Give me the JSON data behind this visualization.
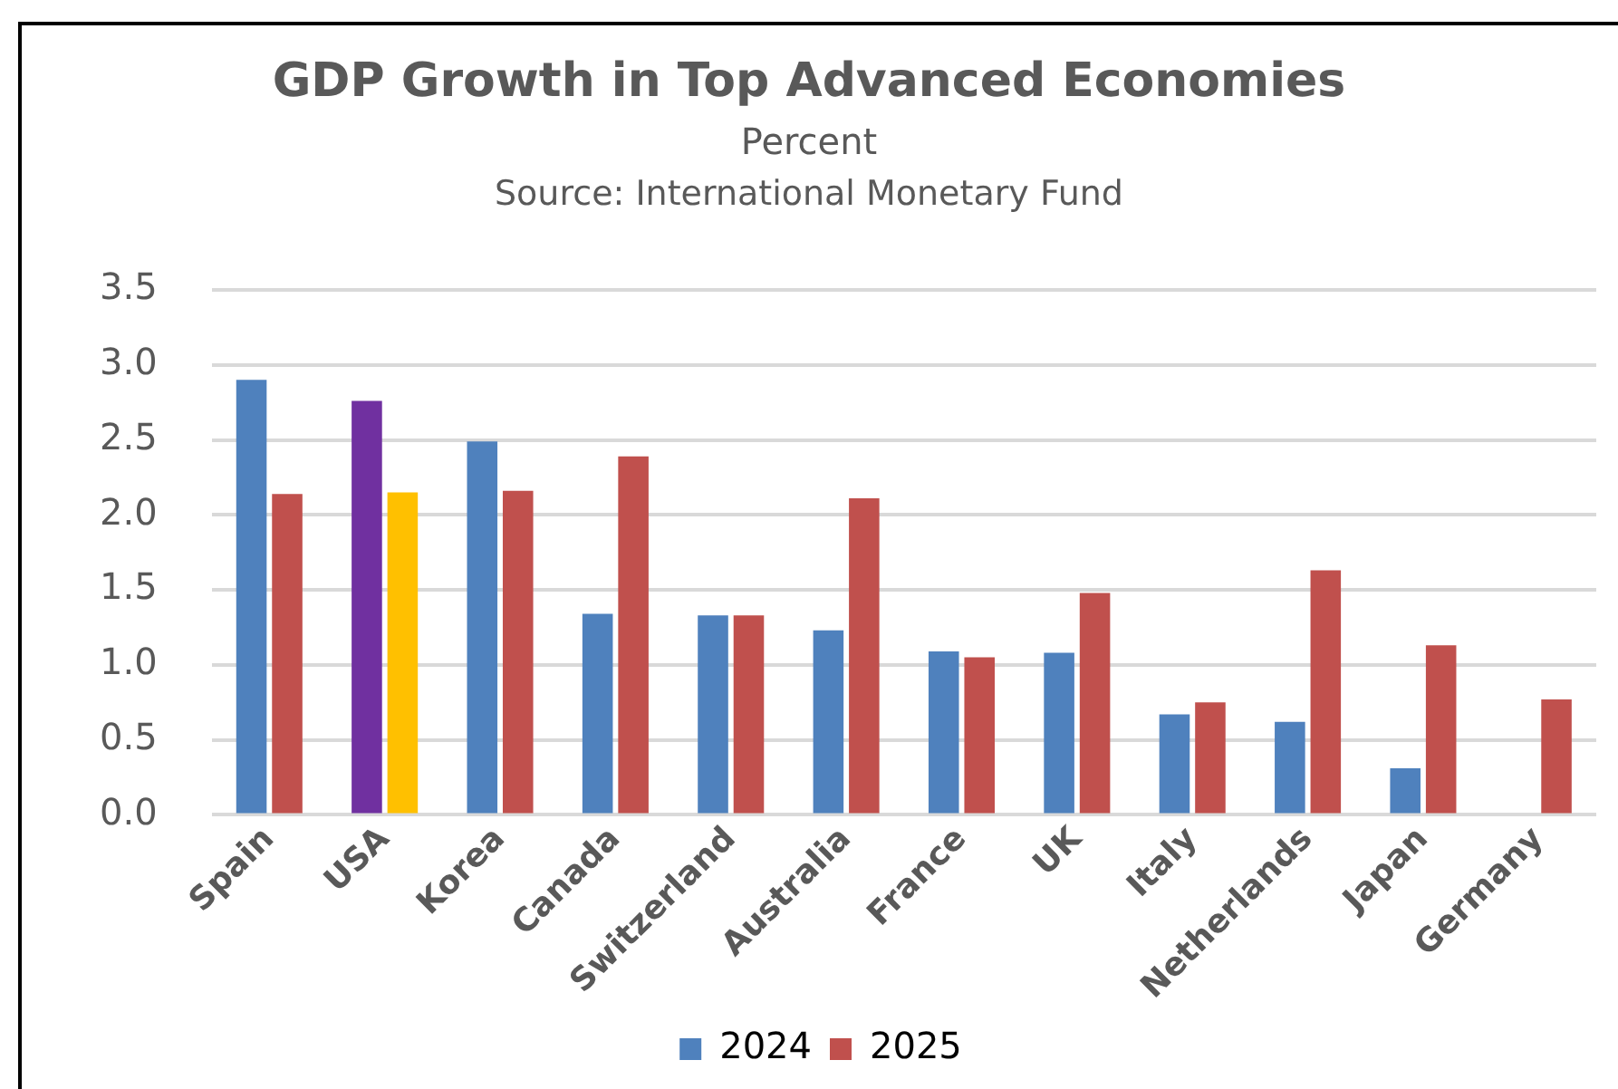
{
  "chart_data": {
    "type": "bar",
    "title": "GDP Growth in Top Advanced Economies",
    "subtitle": "Percent",
    "annotations": [
      "Source: International Monetary Fund"
    ],
    "categories": [
      "Spain",
      "USA",
      "Korea",
      "Canada",
      "Switzerland",
      "Australia",
      "France",
      "UK",
      "Italy",
      "Netherlands",
      "Japan",
      "Germany"
    ],
    "series": [
      {
        "name": "2024",
        "color": "#4f81bd",
        "colors": [
          "#4f81bd",
          "#7030a0",
          "#4f81bd",
          "#4f81bd",
          "#4f81bd",
          "#4f81bd",
          "#4f81bd",
          "#4f81bd",
          "#4f81bd",
          "#4f81bd",
          "#4f81bd",
          "#4f81bd"
        ],
        "values": [
          2.9,
          2.76,
          2.49,
          1.34,
          1.33,
          1.23,
          1.09,
          1.08,
          0.67,
          0.62,
          0.31,
          null
        ]
      },
      {
        "name": "2025",
        "color": "#c0504d",
        "colors": [
          "#c0504d",
          "#ffc000",
          "#c0504d",
          "#c0504d",
          "#c0504d",
          "#c0504d",
          "#c0504d",
          "#c0504d",
          "#c0504d",
          "#c0504d",
          "#c0504d",
          "#c0504d"
        ],
        "values": [
          2.14,
          2.15,
          2.16,
          2.39,
          1.33,
          2.11,
          1.05,
          1.48,
          0.75,
          1.63,
          1.13,
          0.77
        ]
      }
    ],
    "ylim": [
      0,
      3.5
    ],
    "yticks": [
      {
        "value": 0,
        "label": "0.0"
      },
      0.5,
      {
        "value": 1,
        "label": "1.0"
      },
      1.5,
      {
        "value": 2,
        "label": "2.0"
      },
      2.5,
      {
        "value": 3,
        "label": "3.0"
      },
      3.5
    ],
    "grid": "y",
    "legend": "bottom"
  }
}
